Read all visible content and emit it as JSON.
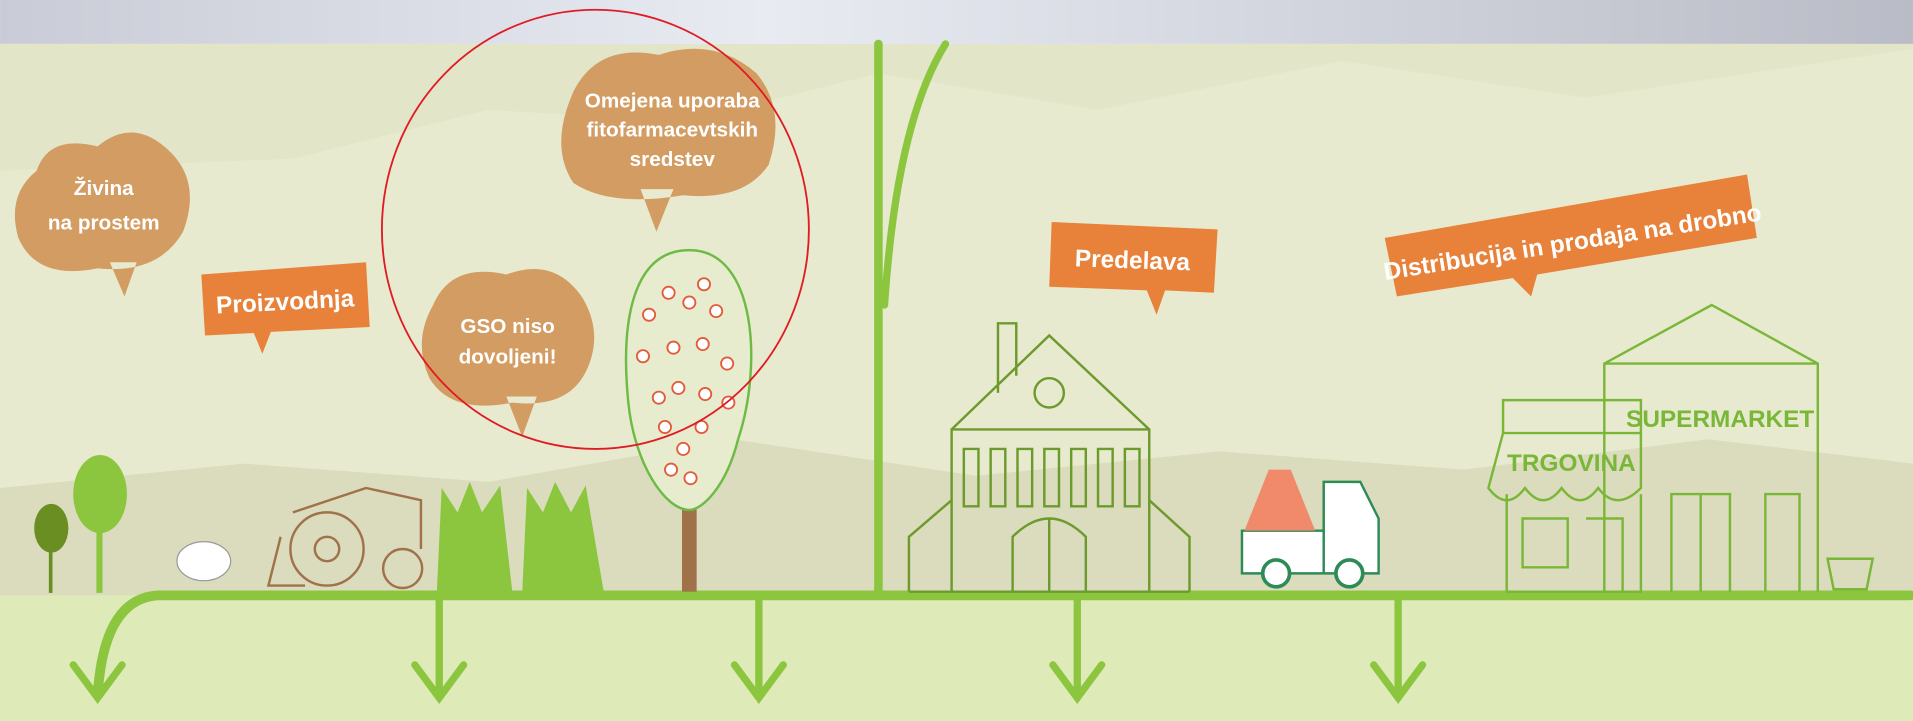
{
  "callouts": [
    {
      "lines": [
        "Živina",
        "na prostem"
      ]
    },
    {
      "lines": [
        "Omejena uporaba",
        "fitofarmacevtskih",
        "sredstev"
      ]
    },
    {
      "lines": [
        "GSO niso",
        "dovoljeni!"
      ]
    }
  ],
  "tags": [
    "Proizvodnja",
    "Predelava",
    "Distribucija in prodaja na drobno"
  ],
  "signs": [
    "TRGOVINA",
    "SUPERMARKET"
  ]
}
